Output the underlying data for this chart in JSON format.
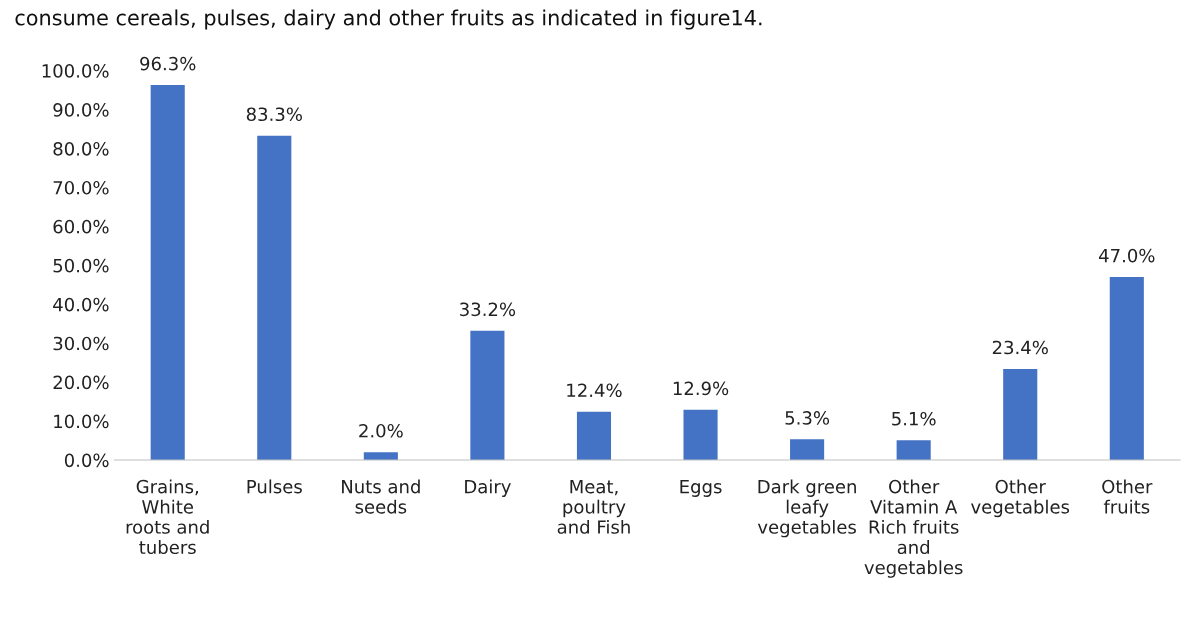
{
  "chart_data": {
    "type": "bar",
    "annotations": [
      "consume cereals, pulses, dairy and other fruits as indicated in figure14."
    ],
    "categories": [
      "Grains,\nWhite\nroots and\ntubers",
      "Pulses",
      "Nuts and\nseeds",
      "Dairy",
      "Meat,\npoultry\nand Fish",
      "Eggs",
      "Dark green\nleafy\nvegetables",
      "Other\nVitamin A\nRich fruits\nand\nvegetables",
      "Other\nvegetables",
      "Other\nfruits"
    ],
    "values": [
      96.3,
      83.3,
      2.0,
      33.2,
      12.4,
      12.9,
      5.3,
      5.1,
      23.4,
      47.0
    ],
    "value_labels": [
      "96.3%",
      "83.3%",
      "2.0%",
      "33.2%",
      "12.4%",
      "12.9%",
      "5.3%",
      "5.1%",
      "23.4%",
      "47.0%"
    ],
    "color": "#4472c4",
    "ylim": [
      0,
      100
    ],
    "yticks": [
      {
        "value": 0,
        "label": "0.0%"
      },
      {
        "value": 10,
        "label": "10.0%"
      },
      {
        "value": 20,
        "label": "20.0%"
      },
      {
        "value": 30,
        "label": "30.0%"
      },
      {
        "value": 40,
        "label": "40.0%"
      },
      {
        "value": 50,
        "label": "50.0%"
      },
      {
        "value": 60,
        "label": "60.0%"
      },
      {
        "value": 70,
        "label": "70.0%"
      },
      {
        "value": 80,
        "label": "80.0%"
      },
      {
        "value": 90,
        "label": "90.0%"
      },
      {
        "value": 100,
        "label": "100.0%"
      }
    ],
    "grid": false,
    "legend": false
  }
}
